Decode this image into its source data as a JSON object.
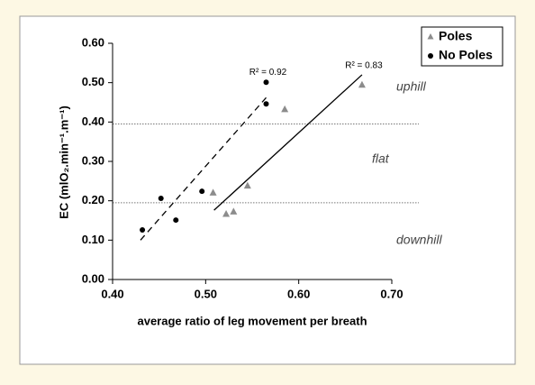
{
  "chart_data": {
    "type": "scatter",
    "x_label": "average ratio of leg movement per breath",
    "y_label": "EC (mlO₂.min⁻¹.m⁻¹)",
    "xlim": [
      0.4,
      0.7
    ],
    "ylim": [
      0,
      0.6
    ],
    "xticks": [
      {
        "value": 0.4,
        "label": "0.40"
      },
      {
        "value": 0.5,
        "label": "0.50"
      },
      {
        "value": 0.6,
        "label": "0.60"
      },
      {
        "value": 0.7,
        "label": "0.70"
      }
    ],
    "yticks": [
      {
        "value": 0,
        "label": "0.00"
      },
      {
        "value": 0.1,
        "label": "0.10"
      },
      {
        "value": 0.2,
        "label": "0.20"
      },
      {
        "value": 0.3,
        "label": "0.30"
      },
      {
        "value": 0.4,
        "label": "0.40"
      },
      {
        "value": 0.5,
        "label": "0.50"
      },
      {
        "value": 0.6,
        "label": "0.60"
      }
    ],
    "series": [
      {
        "name": "Poles",
        "color": "#8c8c8c",
        "marker": "triangle",
        "x": [
          0.508,
          0.522,
          0.53,
          0.545,
          0.585,
          0.668
        ],
        "values": [
          0.22,
          0.166,
          0.172,
          0.238,
          0.432,
          0.494
        ]
      },
      {
        "name": "No Poles",
        "color": "#000000",
        "marker": "circle",
        "x": [
          0.432,
          0.452,
          0.468,
          0.496,
          0.565,
          0.565
        ],
        "values": [
          0.126,
          0.206,
          0.151,
          0.224,
          0.446,
          0.501
        ]
      }
    ],
    "trend_lines": [
      {
        "x": [
          0.43,
          0.565
        ],
        "values": [
          0.1,
          0.462
        ],
        "dashed": true,
        "label": "R² = 0.92"
      },
      {
        "x": [
          0.509,
          0.668
        ],
        "values": [
          0.176,
          0.52
        ],
        "dashed": false,
        "label": "R² = 0.83"
      }
    ],
    "reference_lines": [
      0.395,
      0.195
    ],
    "annotations": [
      "uphill",
      "flat",
      "downhill"
    ],
    "legend_position": "upper right"
  }
}
